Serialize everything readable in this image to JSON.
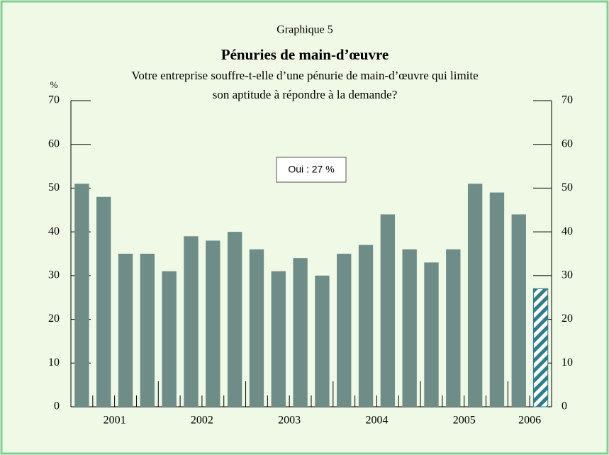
{
  "chart_data": {
    "type": "bar",
    "title": "Graphique 5",
    "subtitle": "Pénuries de main-d’œuvre",
    "question": [
      "Votre entreprise souffre-t-elle d’une pénurie de main-d’œuvre qui limite",
      "son aptitude à répondre à la demande?"
    ],
    "y_unit": "%",
    "annotation": "Oui : 27 %",
    "x_groups": [
      {
        "label": "2001",
        "count": 4
      },
      {
        "label": "2002",
        "count": 4
      },
      {
        "label": "2003",
        "count": 4
      },
      {
        "label": "2004",
        "count": 4
      },
      {
        "label": "2005",
        "count": 4
      },
      {
        "label": "2006",
        "count": 2
      }
    ],
    "categories": [
      null,
      null,
      null,
      null,
      null,
      null,
      null,
      null,
      null,
      null,
      null,
      null,
      null,
      null,
      null,
      null,
      null,
      null,
      null,
      null,
      null,
      null
    ],
    "values": [
      51,
      48,
      35,
      35,
      31,
      39,
      38,
      40,
      36,
      31,
      34,
      30,
      35,
      37,
      44,
      36,
      33,
      36,
      51,
      49,
      44,
      27
    ],
    "color": "#6e8c88",
    "highlight_color": "#2e7d8c",
    "highlight_index": 21,
    "ylim": [
      0,
      70
    ],
    "yticks": [
      0,
      10,
      20,
      30,
      40,
      50,
      60,
      70
    ]
  }
}
